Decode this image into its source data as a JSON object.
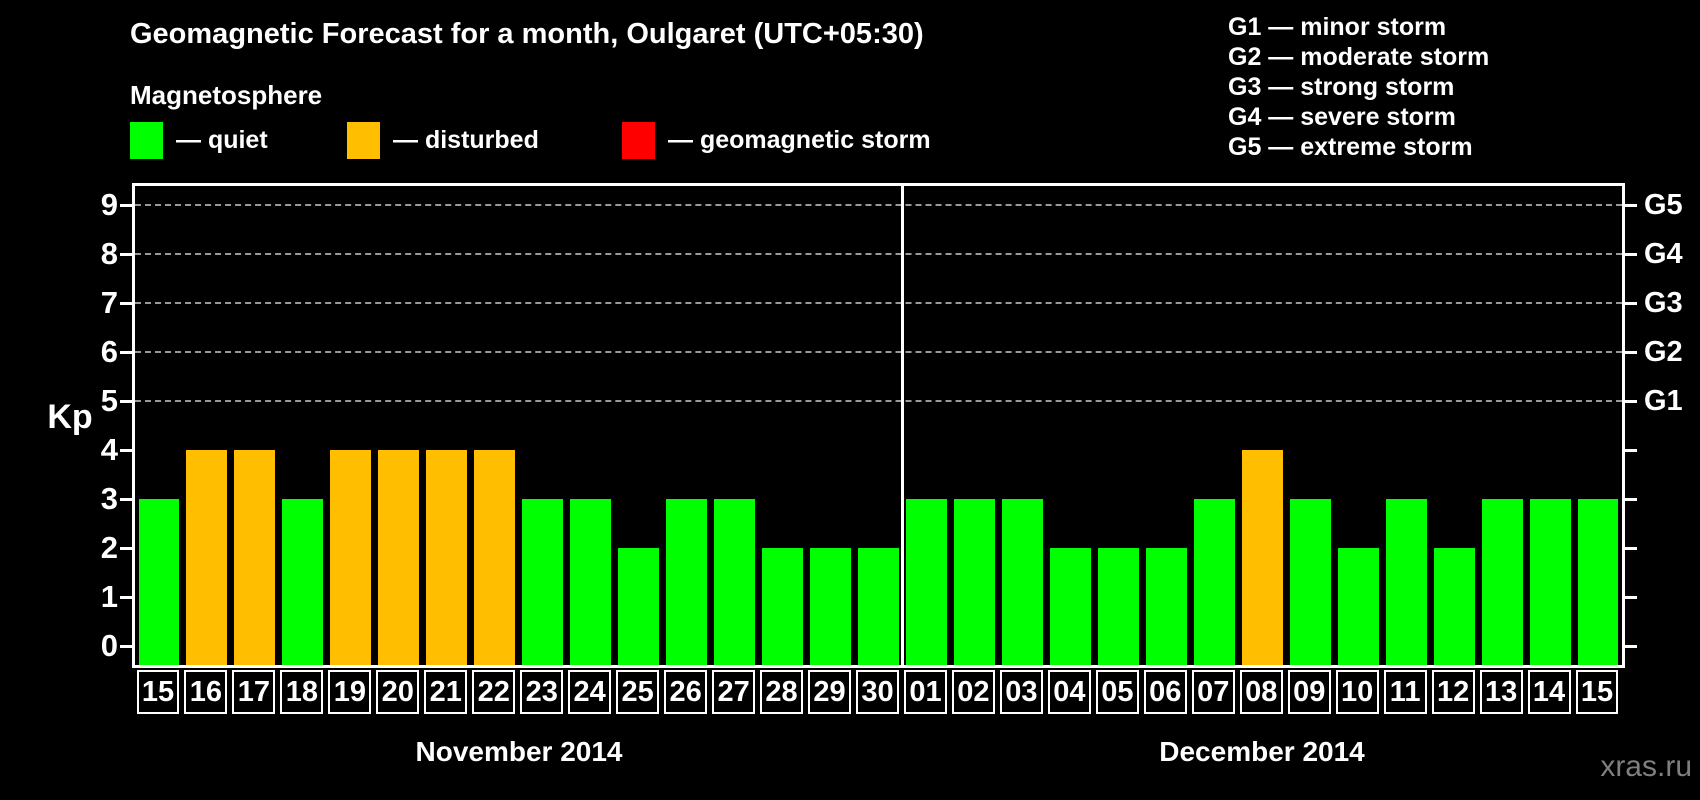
{
  "title": "Geomagnetic Forecast for a month, Oulgaret (UTC+05:30)",
  "legend": {
    "heading": "Magnetosphere",
    "items": [
      {
        "label": "— quiet",
        "state": "quiet",
        "color": "#00ff00"
      },
      {
        "label": "— disturbed",
        "state": "disturbed",
        "color": "#ffbe00"
      },
      {
        "label": "— geomagnetic storm",
        "state": "storm",
        "color": "#ff0000"
      }
    ]
  },
  "g_scale_legend": {
    "lines": [
      "G1 — minor storm",
      "G2 — moderate storm",
      "G3 — strong storm",
      "G4 — severe storm",
      "G5 — extreme storm"
    ]
  },
  "watermark": "xras.ru",
  "chart_data": {
    "type": "bar",
    "title": "Geomagnetic Forecast for a month, Oulgaret (UTC+05:30)",
    "ylabel": "Kp",
    "ylim": [
      0,
      9
    ],
    "yticks": [
      0,
      1,
      2,
      3,
      4,
      5,
      6,
      7,
      8,
      9
    ],
    "gridlines_at_kp": [
      5,
      6,
      7,
      8,
      9
    ],
    "grid": "dashed horizontal lines at storm levels G1-G5",
    "legend_position": "top",
    "right_axis": [
      {
        "label": "G1",
        "kp": 5
      },
      {
        "label": "G2",
        "kp": 6
      },
      {
        "label": "G3",
        "kp": 7
      },
      {
        "label": "G4",
        "kp": 8
      },
      {
        "label": "G5",
        "kp": 9
      }
    ],
    "colors": {
      "quiet": "#00ff00",
      "disturbed": "#ffbe00",
      "storm": "#ff0000"
    },
    "months": [
      {
        "label": "November 2014",
        "days": [
          {
            "date": "15",
            "kp": 3,
            "state": "quiet"
          },
          {
            "date": "16",
            "kp": 4,
            "state": "disturbed"
          },
          {
            "date": "17",
            "kp": 4,
            "state": "disturbed"
          },
          {
            "date": "18",
            "kp": 3,
            "state": "quiet"
          },
          {
            "date": "19",
            "kp": 4,
            "state": "disturbed"
          },
          {
            "date": "20",
            "kp": 4,
            "state": "disturbed"
          },
          {
            "date": "21",
            "kp": 4,
            "state": "disturbed"
          },
          {
            "date": "22",
            "kp": 4,
            "state": "disturbed"
          },
          {
            "date": "23",
            "kp": 3,
            "state": "quiet"
          },
          {
            "date": "24",
            "kp": 3,
            "state": "quiet"
          },
          {
            "date": "25",
            "kp": 2,
            "state": "quiet"
          },
          {
            "date": "26",
            "kp": 3,
            "state": "quiet"
          },
          {
            "date": "27",
            "kp": 3,
            "state": "quiet"
          },
          {
            "date": "28",
            "kp": 2,
            "state": "quiet"
          },
          {
            "date": "29",
            "kp": 2,
            "state": "quiet"
          },
          {
            "date": "30",
            "kp": 2,
            "state": "quiet"
          }
        ]
      },
      {
        "label": "December 2014",
        "days": [
          {
            "date": "01",
            "kp": 3,
            "state": "quiet"
          },
          {
            "date": "02",
            "kp": 3,
            "state": "quiet"
          },
          {
            "date": "03",
            "kp": 3,
            "state": "quiet"
          },
          {
            "date": "04",
            "kp": 2,
            "state": "quiet"
          },
          {
            "date": "05",
            "kp": 2,
            "state": "quiet"
          },
          {
            "date": "06",
            "kp": 2,
            "state": "quiet"
          },
          {
            "date": "07",
            "kp": 3,
            "state": "quiet"
          },
          {
            "date": "08",
            "kp": 4,
            "state": "disturbed"
          },
          {
            "date": "09",
            "kp": 3,
            "state": "quiet"
          },
          {
            "date": "10",
            "kp": 2,
            "state": "quiet"
          },
          {
            "date": "11",
            "kp": 3,
            "state": "quiet"
          },
          {
            "date": "12",
            "kp": 2,
            "state": "quiet"
          },
          {
            "date": "13",
            "kp": 3,
            "state": "quiet"
          },
          {
            "date": "14",
            "kp": 3,
            "state": "quiet"
          },
          {
            "date": "15",
            "kp": 3,
            "state": "quiet"
          }
        ]
      }
    ]
  }
}
